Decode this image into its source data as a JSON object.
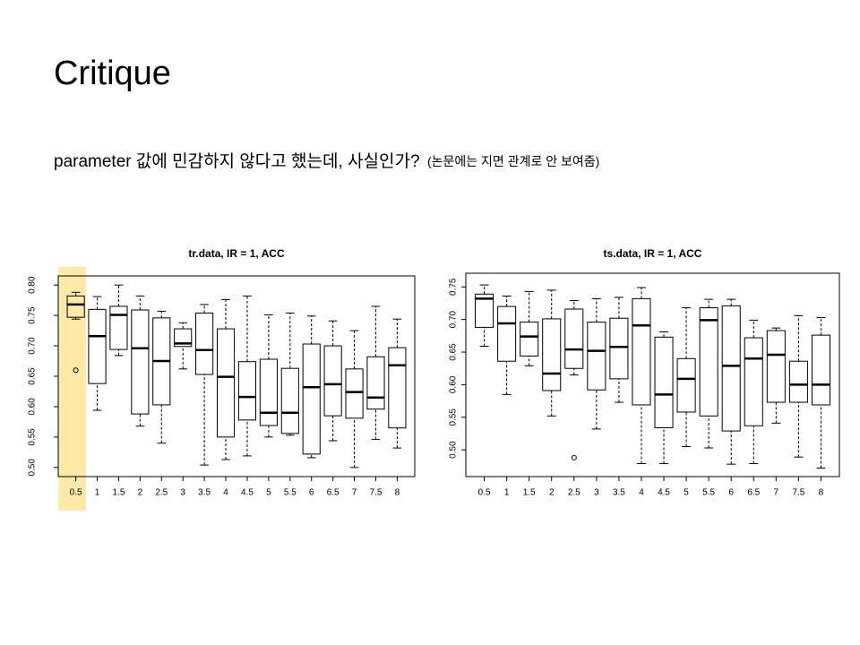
{
  "slide": {
    "title": "Critique",
    "text": {
      "main": "parameter 값에 민감하지 않다고 했는데, 사실인가?",
      "note": "(논문에는 지면 관계로 안 보여줌)"
    }
  },
  "chart_data": [
    {
      "type": "boxplot",
      "title": "tr.data, IR = 1, ACC",
      "categories": [
        "0.5",
        "1",
        "1.5",
        "2",
        "2.5",
        "3",
        "3.5",
        "4",
        "4.5",
        "5",
        "5.5",
        "6",
        "6.5",
        "7",
        "7.5",
        "8"
      ],
      "boxes": [
        {
          "whislo": 0.744,
          "q1": 0.747,
          "med": 0.768,
          "q3": 0.782,
          "whishi": 0.788,
          "outliers": [
            0.66
          ]
        },
        {
          "whislo": 0.594,
          "q1": 0.638,
          "med": 0.716,
          "q3": 0.76,
          "whishi": 0.781,
          "outliers": []
        },
        {
          "whislo": 0.684,
          "q1": 0.694,
          "med": 0.751,
          "q3": 0.765,
          "whishi": 0.8,
          "outliers": []
        },
        {
          "whislo": 0.568,
          "q1": 0.588,
          "med": 0.696,
          "q3": 0.759,
          "whishi": 0.782,
          "outliers": []
        },
        {
          "whislo": 0.54,
          "q1": 0.603,
          "med": 0.675,
          "q3": 0.746,
          "whishi": 0.757,
          "outliers": []
        },
        {
          "whislo": 0.662,
          "q1": 0.699,
          "med": 0.704,
          "q3": 0.728,
          "whishi": 0.738,
          "outliers": []
        },
        {
          "whislo": 0.504,
          "q1": 0.653,
          "med": 0.693,
          "q3": 0.754,
          "whishi": 0.768,
          "outliers": []
        },
        {
          "whislo": 0.513,
          "q1": 0.55,
          "med": 0.649,
          "q3": 0.728,
          "whishi": 0.776,
          "outliers": []
        },
        {
          "whislo": 0.519,
          "q1": 0.578,
          "med": 0.616,
          "q3": 0.674,
          "whishi": 0.782,
          "outliers": []
        },
        {
          "whislo": 0.55,
          "q1": 0.569,
          "med": 0.59,
          "q3": 0.678,
          "whishi": 0.751,
          "outliers": []
        },
        {
          "whislo": 0.553,
          "q1": 0.556,
          "med": 0.59,
          "q3": 0.663,
          "whishi": 0.754,
          "outliers": []
        },
        {
          "whislo": 0.516,
          "q1": 0.522,
          "med": 0.632,
          "q3": 0.703,
          "whishi": 0.749,
          "outliers": []
        },
        {
          "whislo": 0.544,
          "q1": 0.585,
          "med": 0.637,
          "q3": 0.7,
          "whishi": 0.741,
          "outliers": []
        },
        {
          "whislo": 0.5,
          "q1": 0.581,
          "med": 0.624,
          "q3": 0.662,
          "whishi": 0.725,
          "outliers": []
        },
        {
          "whislo": 0.546,
          "q1": 0.596,
          "med": 0.615,
          "q3": 0.682,
          "whishi": 0.765,
          "outliers": []
        },
        {
          "whislo": 0.532,
          "q1": 0.565,
          "med": 0.668,
          "q3": 0.697,
          "whishi": 0.744,
          "outliers": []
        }
      ],
      "ylim": [
        0.485,
        0.815
      ],
      "yticks": [
        {
          "value": 0.5,
          "label": "0.50"
        },
        0.55,
        {
          "value": 0.6,
          "label": "0.60"
        },
        0.65,
        {
          "value": 0.7,
          "label": "0.70"
        },
        0.75,
        {
          "value": 0.8,
          "label": "0.80"
        }
      ]
    },
    {
      "type": "boxplot",
      "title": "ts.data, IR = 1, ACC",
      "categories": [
        "0.5",
        "1",
        "1.5",
        "2",
        "2.5",
        "3",
        "3.5",
        "4",
        "4.5",
        "5",
        "5.5",
        "6",
        "6.5",
        "7",
        "7.5",
        "8"
      ],
      "boxes": [
        {
          "whislo": 0.659,
          "q1": 0.688,
          "med": 0.732,
          "q3": 0.739,
          "whishi": 0.753,
          "outliers": []
        },
        {
          "whislo": 0.585,
          "q1": 0.636,
          "med": 0.694,
          "q3": 0.72,
          "whishi": 0.736,
          "outliers": []
        },
        {
          "whislo": 0.629,
          "q1": 0.644,
          "med": 0.674,
          "q3": 0.696,
          "whishi": 0.743,
          "outliers": []
        },
        {
          "whislo": 0.552,
          "q1": 0.591,
          "med": 0.617,
          "q3": 0.701,
          "whishi": 0.745,
          "outliers": []
        },
        {
          "whislo": 0.615,
          "q1": 0.625,
          "med": 0.654,
          "q3": 0.716,
          "whishi": 0.729,
          "outliers": [
            0.488
          ]
        },
        {
          "whislo": 0.532,
          "q1": 0.592,
          "med": 0.652,
          "q3": 0.696,
          "whishi": 0.732,
          "outliers": []
        },
        {
          "whislo": 0.573,
          "q1": 0.609,
          "med": 0.658,
          "q3": 0.702,
          "whishi": 0.734,
          "outliers": []
        },
        {
          "whislo": 0.479,
          "q1": 0.569,
          "med": 0.691,
          "q3": 0.732,
          "whishi": 0.749,
          "outliers": []
        },
        {
          "whislo": 0.479,
          "q1": 0.534,
          "med": 0.585,
          "q3": 0.673,
          "whishi": 0.681,
          "outliers": []
        },
        {
          "whislo": 0.505,
          "q1": 0.558,
          "med": 0.609,
          "q3": 0.64,
          "whishi": 0.718,
          "outliers": []
        },
        {
          "whislo": 0.503,
          "q1": 0.552,
          "med": 0.699,
          "q3": 0.718,
          "whishi": 0.731,
          "outliers": []
        },
        {
          "whislo": 0.478,
          "q1": 0.529,
          "med": 0.629,
          "q3": 0.721,
          "whishi": 0.731,
          "outliers": []
        },
        {
          "whislo": 0.479,
          "q1": 0.537,
          "med": 0.64,
          "q3": 0.672,
          "whishi": 0.699,
          "outliers": []
        },
        {
          "whislo": 0.541,
          "q1": 0.573,
          "med": 0.646,
          "q3": 0.683,
          "whishi": 0.687,
          "outliers": []
        },
        {
          "whislo": 0.489,
          "q1": 0.573,
          "med": 0.6,
          "q3": 0.636,
          "whishi": 0.706,
          "outliers": []
        },
        {
          "whislo": 0.472,
          "q1": 0.569,
          "med": 0.6,
          "q3": 0.676,
          "whishi": 0.703,
          "outliers": []
        }
      ],
      "ylim": [
        0.459,
        0.771
      ],
      "yticks": [
        {
          "value": 0.5,
          "label": "0.50"
        },
        0.55,
        {
          "value": 0.6,
          "label": "0.60"
        },
        0.65,
        {
          "value": 0.7,
          "label": "0.70"
        },
        0.75
      ]
    }
  ]
}
